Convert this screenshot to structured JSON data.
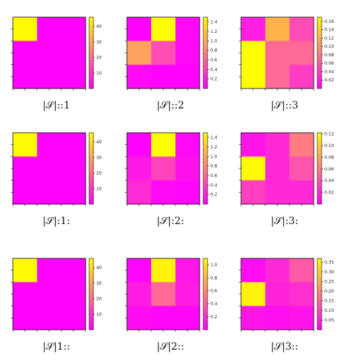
{
  "chart_data": [
    {
      "type": "heatmap",
      "caption": "|𝒮|::1",
      "values": [
        [
          45,
          0.5,
          0.5
        ],
        [
          0.5,
          0.5,
          0.5
        ],
        [
          0.5,
          0.5,
          0.5
        ]
      ],
      "colorbar": {
        "min": 0,
        "max": 46,
        "ticks": [
          "10",
          "20",
          "30",
          "40"
        ],
        "tick_values": [
          10,
          20,
          30,
          40
        ]
      }
    },
    {
      "type": "heatmap",
      "caption": "|𝒮|::2",
      "values": [
        [
          0.02,
          1.5,
          0.05
        ],
        [
          0.95,
          0.45,
          0.05
        ],
        [
          0.05,
          0.02,
          0.02
        ]
      ],
      "colorbar": {
        "min": 0,
        "max": 1.5,
        "ticks": [
          "0.2",
          "0.4",
          "0.6",
          "0.8",
          "1.0",
          "1.2",
          "1.4"
        ],
        "tick_values": [
          0.2,
          0.4,
          0.6,
          0.8,
          1.0,
          1.2,
          1.4
        ]
      }
    },
    {
      "type": "heatmap",
      "caption": "|𝒮|::3",
      "values": [
        [
          0.02,
          0.12,
          0.05
        ],
        [
          0.17,
          0.07,
          0.07
        ],
        [
          0.17,
          0.07,
          0.04
        ]
      ],
      "colorbar": {
        "min": 0,
        "max": 0.17,
        "ticks": [
          "0.02",
          "0.04",
          "0.06",
          "0.08",
          "0.10",
          "0.12",
          "0.14",
          "0.16"
        ],
        "tick_values": [
          0.02,
          0.04,
          0.06,
          0.08,
          0.1,
          0.12,
          0.14,
          0.16
        ]
      }
    },
    {
      "type": "heatmap",
      "caption": "|𝒮|:1:",
      "values": [
        [
          45,
          0.5,
          0.5
        ],
        [
          0.5,
          0.5,
          0.5
        ],
        [
          0.5,
          0.5,
          0.5
        ]
      ],
      "colorbar": {
        "min": 0,
        "max": 46,
        "ticks": [
          "10",
          "20",
          "30",
          "40"
        ],
        "tick_values": [
          10,
          20,
          30,
          40
        ]
      }
    },
    {
      "type": "heatmap",
      "caption": "|𝒮|:2:",
      "values": [
        [
          0.02,
          1.5,
          0.05
        ],
        [
          0.15,
          0.4,
          0.1
        ],
        [
          0.25,
          0.05,
          0.03
        ]
      ],
      "colorbar": {
        "min": 0,
        "max": 1.5,
        "ticks": [
          "0.2",
          "0.4",
          "0.6",
          "0.8",
          "1.0",
          "1.2",
          "1.4"
        ],
        "tick_values": [
          0.2,
          0.4,
          0.6,
          0.8,
          1.0,
          1.2,
          1.4
        ]
      }
    },
    {
      "type": "heatmap",
      "caption": "|𝒮|:3:",
      "values": [
        [
          0.01,
          0.02,
          0.06
        ],
        [
          0.12,
          0.02,
          0.04
        ],
        [
          0.03,
          0.02,
          0.02
        ]
      ],
      "colorbar": {
        "min": 0,
        "max": 0.122,
        "ticks": [
          "0.02",
          "0.04",
          "0.06",
          "0.08",
          "0.10",
          "0.12"
        ],
        "tick_values": [
          0.02,
          0.04,
          0.06,
          0.08,
          0.1,
          0.12
        ]
      }
    },
    {
      "type": "heatmap",
      "caption": "|𝒮|1::",
      "values": [
        [
          45,
          0.5,
          0.5
        ],
        [
          0.5,
          0.5,
          0.5
        ],
        [
          0.5,
          0.5,
          0.5
        ]
      ],
      "colorbar": {
        "min": 0,
        "max": 46,
        "ticks": [
          "10",
          "20",
          "30",
          "40"
        ],
        "tick_values": [
          10,
          20,
          30,
          40
        ]
      }
    },
    {
      "type": "heatmap",
      "caption": "|𝒮|2::",
      "values": [
        [
          0.02,
          1.05,
          0.1
        ],
        [
          0.12,
          0.45,
          0.12
        ],
        [
          0.05,
          0.03,
          0.03
        ]
      ],
      "colorbar": {
        "min": 0,
        "max": 1.1,
        "ticks": [
          "0.2",
          "0.4",
          "0.6",
          "0.8",
          "1.0"
        ],
        "tick_values": [
          0.2,
          0.4,
          0.6,
          0.8,
          1.0
        ]
      }
    },
    {
      "type": "heatmap",
      "caption": "|𝒮|3::",
      "values": [
        [
          0.02,
          0.06,
          0.13
        ],
        [
          0.35,
          0.05,
          0.07
        ],
        [
          0.03,
          0.02,
          0.03
        ]
      ],
      "colorbar": {
        "min": 0,
        "max": 0.37,
        "ticks": [
          "0.05",
          "0.10",
          "0.15",
          "0.20",
          "0.25",
          "0.30",
          "0.35"
        ],
        "tick_values": [
          0.05,
          0.1,
          0.15,
          0.2,
          0.25,
          0.3,
          0.35
        ]
      }
    }
  ],
  "colormap": {
    "low": "#ff00ff",
    "high": "#ffff00"
  }
}
